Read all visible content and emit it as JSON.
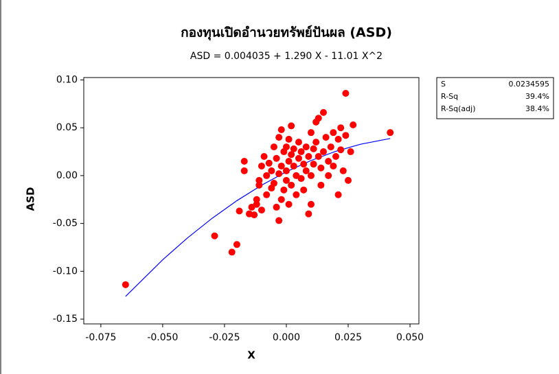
{
  "chart_data": {
    "type": "scatter",
    "title": "กองทุนเปิดอำนวยทรัพย์ปันผล  (ASD)",
    "subtitle": "ASD =  0.004035 + 1.290 X - 11.01 X^2",
    "xlabel": "X",
    "ylabel": "ASD",
    "xlim": [
      -0.0819,
      0.0536
    ],
    "ylim": [
      -0.155,
      0.1025
    ],
    "xticks": [
      {
        "value": -0.075,
        "label": "-0.075"
      },
      {
        "value": -0.05,
        "label": "-0.050"
      },
      {
        "value": -0.025,
        "label": "-0.025"
      },
      {
        "value": 0,
        "label": "0.000"
      },
      {
        "value": 0.025,
        "label": "0.025"
      },
      {
        "value": 0.05,
        "label": "0.050"
      }
    ],
    "yticks": [
      {
        "value": 0.1,
        "label": "0.10"
      },
      {
        "value": 0.05,
        "label": "0.05"
      },
      {
        "value": 0,
        "label": "0.00"
      },
      {
        "value": -0.05,
        "label": "-0.05"
      },
      {
        "value": -0.1,
        "label": "-0.10"
      },
      {
        "value": -0.15,
        "label": "-0.15"
      }
    ],
    "points": {
      "color": "#ff0000",
      "x": [
        -0.065,
        -0.029,
        -0.022,
        -0.02,
        -0.019,
        -0.017,
        -0.017,
        -0.015,
        -0.014,
        -0.013,
        -0.012,
        -0.012,
        -0.011,
        -0.011,
        -0.01,
        -0.01,
        -0.009,
        -0.008,
        -0.008,
        -0.007,
        -0.006,
        -0.006,
        -0.005,
        -0.005,
        -0.004,
        -0.004,
        -0.003,
        -0.003,
        -0.003,
        -0.002,
        -0.002,
        -0.002,
        -0.001,
        -0.001,
        0.0,
        0.0,
        0.0,
        0.001,
        0.001,
        0.001,
        0.002,
        0.002,
        0.002,
        0.003,
        0.003,
        0.004,
        0.004,
        0.005,
        0.005,
        0.006,
        0.006,
        0.007,
        0.007,
        0.008,
        0.008,
        0.009,
        0.009,
        0.01,
        0.01,
        0.01,
        0.011,
        0.011,
        0.012,
        0.012,
        0.013,
        0.013,
        0.014,
        0.014,
        0.015,
        0.015,
        0.016,
        0.017,
        0.017,
        0.018,
        0.019,
        0.019,
        0.02,
        0.021,
        0.021,
        0.022,
        0.022,
        0.023,
        0.024,
        0.024,
        0.025,
        0.026,
        0.027,
        0.042
      ],
      "values": [
        -0.114,
        -0.063,
        -0.08,
        -0.072,
        -0.037,
        0.015,
        0.005,
        -0.04,
        -0.033,
        -0.041,
        -0.025,
        -0.03,
        -0.01,
        -0.005,
        0.01,
        -0.036,
        0.02,
        -0.02,
        0.0,
        0.013,
        0.005,
        -0.013,
        0.03,
        -0.008,
        0.018,
        -0.033,
        0.04,
        -0.047,
        0.002,
        0.048,
        -0.025,
        0.01,
        0.025,
        -0.015,
        0.03,
        0.005,
        -0.005,
        0.015,
        -0.03,
        0.038,
        0.052,
        0.022,
        -0.01,
        0.01,
        0.028,
        -0.02,
        0.0,
        0.018,
        0.035,
        -0.003,
        0.025,
        0.012,
        -0.015,
        0.03,
        0.005,
        0.02,
        -0.04,
        0.045,
        0.0,
        -0.03,
        0.028,
        0.012,
        0.035,
        0.056,
        0.06,
        0.02,
        -0.01,
        0.008,
        0.066,
        0.025,
        0.04,
        0.015,
        0.0,
        0.03,
        0.045,
        0.01,
        0.02,
        0.038,
        -0.02,
        0.05,
        0.027,
        0.005,
        0.086,
        0.042,
        -0.005,
        0.025,
        0.053,
        0.045
      ]
    },
    "fit": {
      "color": "#0000ff",
      "x": [
        -0.065,
        -0.05,
        -0.04,
        -0.03,
        -0.02,
        -0.01,
        0,
        0.01,
        0.02,
        0.03,
        0.042
      ],
      "values": [
        -0.1263,
        -0.088,
        -0.0652,
        -0.0446,
        -0.0262,
        -0.01,
        0.004,
        0.0158,
        0.0254,
        0.0328,
        0.0388
      ]
    },
    "stats": [
      [
        "S",
        "0.0234595"
      ],
      [
        "R-Sq",
        "39.4%"
      ],
      [
        "R-Sq(adj)",
        "38.4%"
      ]
    ]
  }
}
